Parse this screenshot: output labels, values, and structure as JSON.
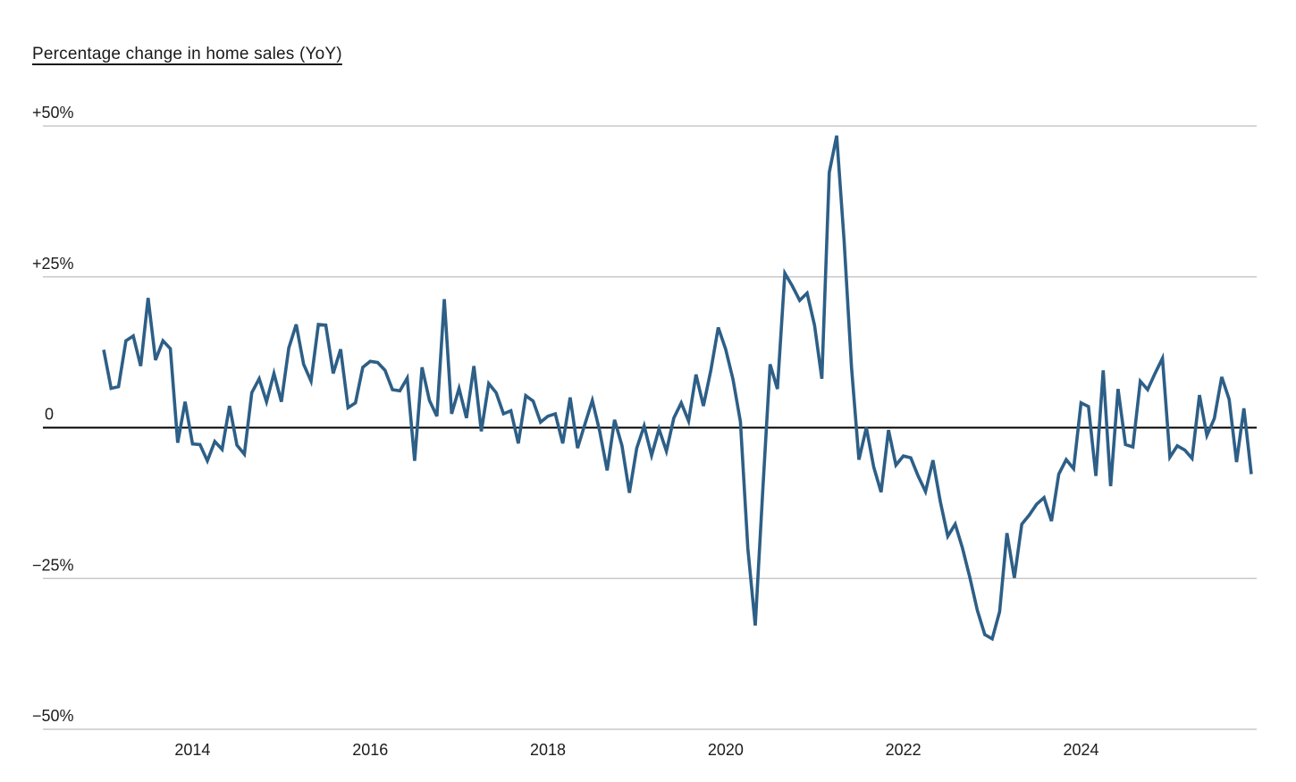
{
  "title": "Percentage change in home sales (YoY)",
  "chart_data": {
    "type": "line",
    "series_name": "home-sales-yoy-percent-change",
    "unit": "%",
    "start": "2013-01",
    "end": "2025-12",
    "frequency": "monthly",
    "values": [
      12.9,
      6.5,
      6.8,
      14.4,
      15.2,
      10.2,
      21.5,
      11.2,
      14.4,
      13.1,
      -2.5,
      4.3,
      -2.7,
      -2.8,
      -5.5,
      -2.3,
      -3.6,
      3.6,
      -2.9,
      -4.4,
      5.8,
      8.1,
      4.3,
      9.0,
      4.3,
      13.2,
      17.1,
      10.5,
      7.7,
      17.1,
      17.0,
      9.0,
      13.0,
      3.3,
      4.1,
      10.0,
      11.0,
      10.8,
      9.5,
      6.3,
      6.1,
      8.2,
      -5.5,
      10.0,
      4.5,
      1.9,
      21.3,
      2.3,
      6.5,
      1.6,
      10.2,
      -0.6,
      7.3,
      5.8,
      2.3,
      2.8,
      -2.6,
      5.3,
      4.4,
      0.9,
      1.9,
      2.3,
      -2.6,
      5.0,
      -3.4,
      0.6,
      4.5,
      -0.6,
      -7.1,
      1.3,
      -3.0,
      -10.8,
      -3.4,
      0.3,
      -4.6,
      -0.2,
      -3.9,
      1.6,
      4.1,
      1.1,
      8.8,
      3.6,
      9.5,
      16.6,
      13.0,
      8.0,
      1.0,
      -20.0,
      -32.8,
      -10.7,
      10.5,
      6.4,
      25.6,
      23.5,
      21.1,
      22.3,
      17.0,
      8.1,
      42.3,
      48.4,
      31.0,
      10.0,
      -5.3,
      0.0,
      -6.5,
      -10.7,
      -0.4,
      -6.2,
      -4.7,
      -5.0,
      -8.0,
      -10.6,
      -5.4,
      -12.3,
      -18.0,
      -16.0,
      -20.0,
      -24.9,
      -30.3,
      -34.3,
      -35.0,
      -30.5,
      -17.5,
      -24.9,
      -16.0,
      -14.5,
      -12.7,
      -11.6,
      -15.5,
      -7.7,
      -5.3,
      -6.8,
      4.1,
      3.5,
      -8.0,
      9.5,
      -9.7,
      6.4,
      -2.8,
      -3.2,
      7.7,
      6.3,
      9.0,
      11.5,
      -4.9,
      -3.0,
      -3.7,
      -5.1,
      5.4,
      -1.3,
      1.5,
      8.4,
      4.7,
      -5.7,
      3.2,
      -7.7
    ],
    "y_ticks": [
      {
        "label": "+50%",
        "value": 50
      },
      {
        "label": "+25%",
        "value": 25
      },
      {
        "label": "0",
        "value": 0
      },
      {
        "label": "−25%",
        "value": -25
      },
      {
        "label": "−50%",
        "value": -50
      }
    ],
    "x_ticks": [
      {
        "label": "2014",
        "year": 2014
      },
      {
        "label": "2016",
        "year": 2016
      },
      {
        "label": "2018",
        "year": 2018
      },
      {
        "label": "2020",
        "year": 2020
      },
      {
        "label": "2022",
        "year": 2022
      },
      {
        "label": "2024",
        "year": 2024
      }
    ],
    "ylim": [
      -50,
      50
    ],
    "grid": "horizontal",
    "legend": "none",
    "line_color": "#2d5f87",
    "zero_line_color": "#000000",
    "grid_color": "#c9c9c9",
    "label_color": "#1c1c1c"
  }
}
